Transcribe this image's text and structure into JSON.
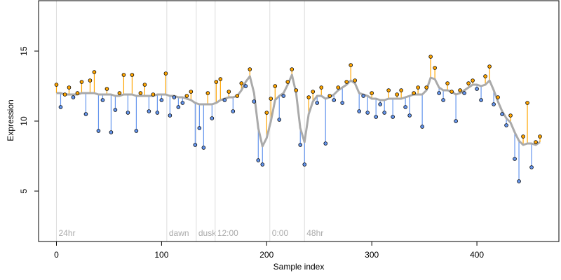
{
  "chart_data": {
    "type": "scatter",
    "x_label": "Sample index",
    "y_label": "Expression",
    "x": [
      0,
      4,
      8,
      12,
      16,
      20,
      24,
      28,
      32,
      36,
      40,
      44,
      48,
      52,
      56,
      60,
      64,
      68,
      72,
      76,
      80,
      84,
      88,
      92,
      96,
      100,
      104,
      108,
      112,
      116,
      120,
      124,
      128,
      132,
      136,
      140,
      144,
      148,
      152,
      156,
      160,
      164,
      168,
      172,
      176,
      180,
      184,
      188,
      192,
      196,
      200,
      204,
      208,
      212,
      216,
      220,
      224,
      228,
      232,
      236,
      240,
      244,
      248,
      252,
      256,
      260,
      264,
      268,
      272,
      276,
      280,
      284,
      288,
      292,
      296,
      300,
      304,
      308,
      312,
      316,
      320,
      324,
      328,
      332,
      336,
      340,
      344,
      348,
      352,
      356,
      360,
      364,
      368,
      372,
      376,
      380,
      384,
      388,
      392,
      396,
      400,
      404,
      408,
      412,
      416,
      420,
      424,
      428,
      432,
      436,
      440,
      444,
      448,
      452,
      456,
      460
    ],
    "values": [
      12.6,
      11.0,
      11.9,
      12.4,
      11.7,
      12.0,
      12.8,
      10.5,
      12.9,
      13.5,
      9.3,
      11.5,
      12.3,
      9.2,
      10.8,
      12.0,
      13.3,
      10.6,
      13.3,
      9.3,
      12.0,
      12.6,
      10.7,
      11.9,
      10.6,
      11.5,
      13.4,
      10.4,
      11.7,
      11.0,
      11.3,
      11.8,
      12.1,
      8.3,
      9.5,
      8.1,
      12.0,
      10.2,
      12.8,
      13.0,
      11.5,
      12.1,
      10.7,
      11.8,
      12.7,
      12.5,
      13.7,
      11.4,
      7.2,
      6.9,
      10.6,
      11.6,
      12.5,
      10.1,
      11.8,
      12.8,
      13.7,
      12.2,
      8.3,
      6.9,
      11.7,
      12.1,
      11.3,
      12.4,
      8.4,
      11.8,
      11.5,
      12.4,
      11.3,
      12.8,
      14.0,
      12.9,
      10.7,
      11.8,
      10.6,
      12.0,
      10.3,
      11.2,
      10.6,
      12.2,
      10.3,
      11.9,
      12.2,
      11.0,
      10.4,
      12.0,
      12.4,
      9.6,
      12.4,
      14.6,
      13.8,
      12.0,
      11.5,
      12.7,
      12.1,
      10.0,
      12.2,
      12.0,
      12.7,
      12.9,
      12.3,
      11.5,
      13.2,
      13.9,
      11.2,
      11.7,
      10.5,
      9.7,
      10.4,
      7.3,
      5.7,
      8.9,
      11.3,
      6.7,
      8.5,
      8.9
    ],
    "fitted": [
      12.0,
      12.0,
      11.9,
      11.9,
      11.9,
      11.9,
      12.0,
      12.0,
      12.0,
      12.0,
      11.9,
      11.9,
      11.9,
      11.9,
      11.8,
      11.8,
      11.9,
      11.9,
      11.9,
      11.8,
      11.8,
      11.8,
      11.8,
      11.8,
      11.9,
      11.9,
      11.9,
      11.8,
      11.8,
      11.7,
      11.7,
      11.6,
      11.5,
      11.3,
      11.2,
      11.2,
      11.2,
      11.2,
      11.3,
      11.5,
      11.6,
      11.7,
      11.7,
      11.8,
      12.2,
      12.8,
      13.2,
      12.0,
      9.5,
      8.2,
      8.8,
      10.0,
      11.5,
      11.8,
      12.0,
      12.6,
      13.3,
      12.0,
      9.5,
      8.5,
      10.5,
      11.4,
      11.8,
      11.8,
      11.6,
      11.7,
      11.9,
      12.2,
      12.4,
      12.6,
      12.9,
      12.7,
      12.0,
      11.9,
      11.8,
      11.6,
      11.6,
      11.5,
      11.5,
      11.6,
      11.6,
      11.6,
      11.6,
      11.7,
      11.8,
      11.9,
      11.9,
      11.9,
      12.2,
      13.1,
      13.0,
      12.4,
      12.2,
      12.2,
      12.1,
      11.9,
      12.0,
      12.2,
      12.4,
      12.6,
      12.6,
      12.5,
      12.6,
      12.9,
      12.2,
      11.4,
      10.7,
      10.2,
      9.9,
      9.2,
      8.6,
      8.3,
      8.4,
      8.4,
      8.3,
      8.5
    ],
    "above_color": "#ffa500",
    "below_color": "#6495ed",
    "fit_color": "#aaaaaa",
    "marker_color": "#dddddd",
    "markers": [
      {
        "label": "24hr",
        "x": 0
      },
      {
        "label": "dawn",
        "x": 105
      },
      {
        "label": "dusk",
        "x": 133
      },
      {
        "label": "12:00",
        "x": 151
      },
      {
        "label": "0:00",
        "x": 203
      },
      {
        "label": "48hr",
        "x": 236
      }
    ],
    "xlim": [
      -17,
      478
    ],
    "ylim": [
      1.4,
      18.6
    ],
    "xticks": [
      0,
      100,
      200,
      300,
      400
    ],
    "yticks": [
      5,
      10,
      15
    ]
  }
}
